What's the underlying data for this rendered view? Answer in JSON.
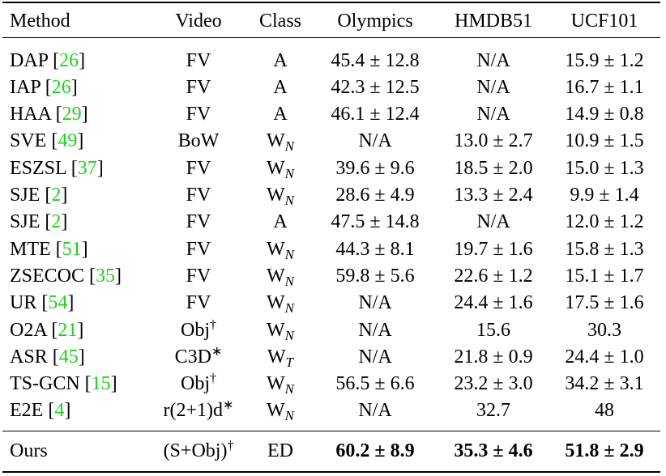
{
  "table": {
    "header": [
      "Method",
      "Video",
      "Class",
      "Olympics",
      "HMDB51",
      "UCF101"
    ],
    "rows": [
      [
        [
          "DAP [",
          {
            "text": "26",
            "style": "cite"
          },
          "]"
        ],
        [
          "FV"
        ],
        [
          "A"
        ],
        [
          "45.4 ± 12.8"
        ],
        [
          "N/A"
        ],
        [
          "15.9 ± 1.2"
        ]
      ],
      [
        [
          "IAP [",
          {
            "text": "26",
            "style": "cite"
          },
          "]"
        ],
        [
          "FV"
        ],
        [
          "A"
        ],
        [
          "42.3 ± 12.5"
        ],
        [
          "N/A"
        ],
        [
          "16.7 ± 1.1"
        ]
      ],
      [
        [
          "HAA [",
          {
            "text": "29",
            "style": "cite"
          },
          "]"
        ],
        [
          "FV"
        ],
        [
          "A"
        ],
        [
          "46.1 ± 12.4"
        ],
        [
          "N/A"
        ],
        [
          "14.9 ± 0.8"
        ]
      ],
      [
        [
          "SVE [",
          {
            "text": "49",
            "style": "cite"
          },
          "]"
        ],
        [
          "BoW"
        ],
        [
          "W",
          {
            "text": "N",
            "style": "sub"
          }
        ],
        [
          "N/A"
        ],
        [
          "13.0 ± 2.7"
        ],
        [
          "10.9 ± 1.5"
        ]
      ],
      [
        [
          "ESZSL [",
          {
            "text": "37",
            "style": "cite"
          },
          "]"
        ],
        [
          "FV"
        ],
        [
          "W",
          {
            "text": "N",
            "style": "sub"
          }
        ],
        [
          "39.6 ± 9.6"
        ],
        [
          "18.5 ± 2.0"
        ],
        [
          "15.0 ± 1.3"
        ]
      ],
      [
        [
          "SJE [",
          {
            "text": "2",
            "style": "cite"
          },
          "]"
        ],
        [
          "FV"
        ],
        [
          "W",
          {
            "text": "N",
            "style": "sub"
          }
        ],
        [
          "28.6 ± 4.9"
        ],
        [
          "13.3 ± 2.4"
        ],
        [
          "9.9 ± 1.4"
        ]
      ],
      [
        [
          "SJE [",
          {
            "text": "2",
            "style": "cite"
          },
          "]"
        ],
        [
          "FV"
        ],
        [
          "A"
        ],
        [
          "47.5 ± 14.8"
        ],
        [
          "N/A"
        ],
        [
          "12.0 ± 1.2"
        ]
      ],
      [
        [
          "MTE [",
          {
            "text": "51",
            "style": "cite"
          },
          "]"
        ],
        [
          "FV"
        ],
        [
          "W",
          {
            "text": "N",
            "style": "sub"
          }
        ],
        [
          "44.3 ± 8.1"
        ],
        [
          "19.7 ± 1.6"
        ],
        [
          "15.8 ± 1.3"
        ]
      ],
      [
        [
          "ZSECOC [",
          {
            "text": "35",
            "style": "cite"
          },
          "]"
        ],
        [
          "FV"
        ],
        [
          "W",
          {
            "text": "N",
            "style": "sub"
          }
        ],
        [
          "59.8 ± 5.6"
        ],
        [
          "22.6 ± 1.2"
        ],
        [
          "15.1 ± 1.7"
        ]
      ],
      [
        [
          "UR [",
          {
            "text": "54",
            "style": "cite"
          },
          "]"
        ],
        [
          "FV"
        ],
        [
          "W",
          {
            "text": "N",
            "style": "sub"
          }
        ],
        [
          "N/A"
        ],
        [
          "24.4 ± 1.6"
        ],
        [
          "17.5 ± 1.6"
        ]
      ],
      [
        [
          "O2A [",
          {
            "text": "21",
            "style": "cite"
          },
          "]"
        ],
        [
          "Obj",
          {
            "text": "†",
            "style": "sup"
          }
        ],
        [
          "W",
          {
            "text": "N",
            "style": "sub"
          }
        ],
        [
          "N/A"
        ],
        [
          "15.6"
        ],
        [
          "30.3"
        ]
      ],
      [
        [
          "ASR [",
          {
            "text": "45",
            "style": "cite"
          },
          "]"
        ],
        [
          "C3D",
          {
            "text": "∗",
            "style": "sup"
          }
        ],
        [
          "W",
          {
            "text": "T",
            "style": "sub"
          }
        ],
        [
          "N/A"
        ],
        [
          "21.8 ± 0.9"
        ],
        [
          "24.4 ± 1.0"
        ]
      ],
      [
        [
          "TS-GCN [",
          {
            "text": "15",
            "style": "cite"
          },
          "]"
        ],
        [
          "Obj",
          {
            "text": "†",
            "style": "sup"
          }
        ],
        [
          "W",
          {
            "text": "N",
            "style": "sub"
          }
        ],
        [
          "56.5 ± 6.6"
        ],
        [
          "23.2 ± 3.0"
        ],
        [
          "34.2 ± 3.1"
        ]
      ],
      [
        [
          "E2E [",
          {
            "text": "4",
            "style": "cite"
          },
          "]"
        ],
        [
          "r(2+1)d",
          {
            "text": "∗",
            "style": "sup"
          }
        ],
        [
          "W",
          {
            "text": "N",
            "style": "sub"
          }
        ],
        [
          "N/A"
        ],
        [
          "32.7"
        ],
        [
          "48"
        ]
      ]
    ],
    "final_row": [
      [
        "Ours"
      ],
      [
        "(S+Obj)",
        {
          "text": "†",
          "style": "sup"
        }
      ],
      [
        "ED"
      ],
      [
        {
          "text": "60.2 ± 8.9",
          "style": "bold"
        }
      ],
      [
        {
          "text": "35.3 ± 4.6",
          "style": "bold"
        }
      ],
      [
        {
          "text": "51.8 ± 2.9",
          "style": "bold"
        }
      ]
    ]
  }
}
